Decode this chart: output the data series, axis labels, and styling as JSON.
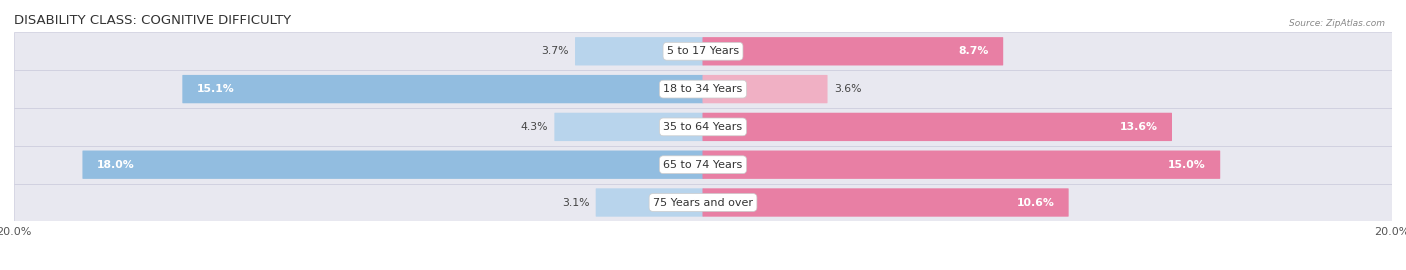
{
  "title": "DISABILITY CLASS: COGNITIVE DIFFICULTY",
  "source_text": "Source: ZipAtlas.com",
  "categories": [
    "5 to 17 Years",
    "18 to 34 Years",
    "35 to 64 Years",
    "65 to 74 Years",
    "75 Years and over"
  ],
  "male_values": [
    3.7,
    15.1,
    4.3,
    18.0,
    3.1
  ],
  "female_values": [
    8.7,
    3.6,
    13.6,
    15.0,
    10.6
  ],
  "max_val": 20.0,
  "male_bar_color": "#92bde0",
  "female_bar_color": "#e87fa4",
  "male_bar_color_small": "#b8d4ec",
  "female_bar_color_small": "#f0b0c4",
  "row_bg_color": "#e8e8f0",
  "row_line_color": "#ccccdd",
  "bar_height": 0.72,
  "title_fontsize": 9.5,
  "value_fontsize": 7.8,
  "cat_fontsize": 8.0,
  "axis_label_fontsize": 8.0,
  "legend_fontsize": 8.0,
  "inside_label_threshold": 7.0
}
